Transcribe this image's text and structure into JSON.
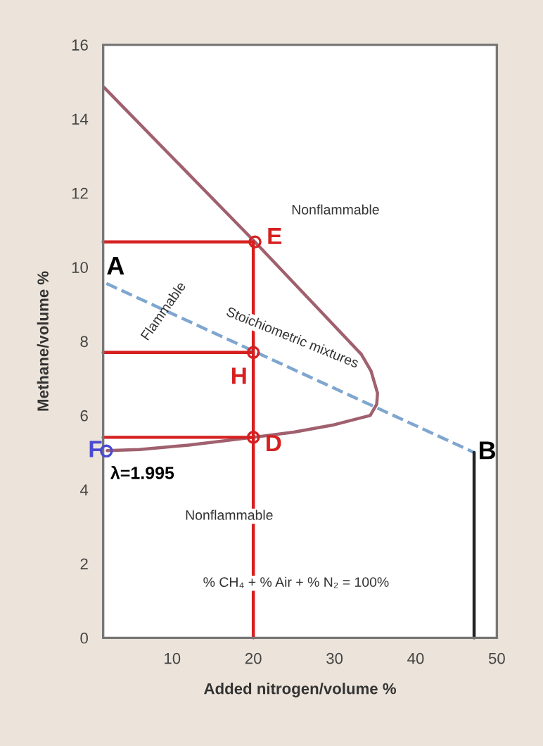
{
  "chart_data": {
    "type": "line",
    "xlabel": "Added nitrogen/volume %",
    "ylabel": "Methane/volume %",
    "xlim": [
      1.5,
      50
    ],
    "xticks": [
      10,
      20,
      30,
      40,
      50
    ],
    "ylim": [
      0,
      16
    ],
    "yticks": [
      0,
      2,
      4,
      6,
      8,
      10,
      12,
      14,
      16
    ],
    "grid": false,
    "legend": false,
    "series": [
      {
        "color": "#a0606e",
        "line_style": "solid",
        "marker": "none",
        "x": [
          1.6,
          20.2,
          33.3,
          34.5,
          35.3,
          35.2,
          34.4,
          30,
          25,
          20,
          12,
          6,
          2
        ],
        "values": [
          14.85,
          10.68,
          7.65,
          7.2,
          6.6,
          6.3,
          6.0,
          5.75,
          5.55,
          5.41,
          5.2,
          5.08,
          5.05
        ]
      },
      {
        "color": "#7fa6cf",
        "line_style": "dashed",
        "marker": "none",
        "x": [
          1.9,
          47.2
        ],
        "values": [
          9.56,
          5.0
        ]
      },
      {
        "color": "#d62020",
        "line_style": "solid",
        "marker": "none",
        "x": [
          1.5,
          20
        ],
        "values": [
          10.68,
          10.68
        ]
      },
      {
        "color": "#d62020",
        "line_style": "solid",
        "marker": "none",
        "x": [
          1.5,
          20
        ],
        "values": [
          7.7,
          7.7
        ]
      },
      {
        "color": "#d62020",
        "line_style": "solid",
        "marker": "none",
        "x": [
          1.5,
          20
        ],
        "values": [
          5.41,
          5.41
        ]
      },
      {
        "color": "#d62020",
        "line_style": "solid",
        "marker": "none",
        "x": [
          20,
          20
        ],
        "values": [
          10.68,
          0
        ]
      },
      {
        "color": "#222222",
        "line_style": "solid",
        "marker": "none",
        "x": [
          47.2,
          47.2
        ],
        "values": [
          5.0,
          0
        ]
      },
      {
        "type": "scatter",
        "color": "#d62020",
        "marker": "circle",
        "x": [
          20.2,
          20,
          20
        ],
        "values": [
          10.68,
          7.7,
          5.41
        ]
      },
      {
        "type": "scatter",
        "color": "#4a4ad0",
        "marker": "circle",
        "x": [
          1.9
        ],
        "values": [
          5.04
        ]
      }
    ],
    "annotations": [
      "Nonflammable",
      {
        "text": "Flammable",
        "x": 9,
        "y": 8.8
      },
      "Stoichiometric mixtures",
      "Nonflammable",
      "% CH₄ + % Air + % N₂ = 100%",
      {
        "text": "A",
        "x": 1.9,
        "y": 9.56
      },
      {
        "text": "B",
        "x": 47.2,
        "y": 5.0
      },
      {
        "text": "E",
        "x": 20.2,
        "y": 10.68
      },
      {
        "text": "H",
        "x": 20,
        "y": 7.7
      },
      {
        "text": "D",
        "x": 20,
        "y": 5.41
      },
      {
        "text": "F",
        "x": 1.9,
        "y": 5.04
      },
      {
        "text": "λ=1.995",
        "x": 1.9,
        "y": 5.04
      }
    ]
  }
}
